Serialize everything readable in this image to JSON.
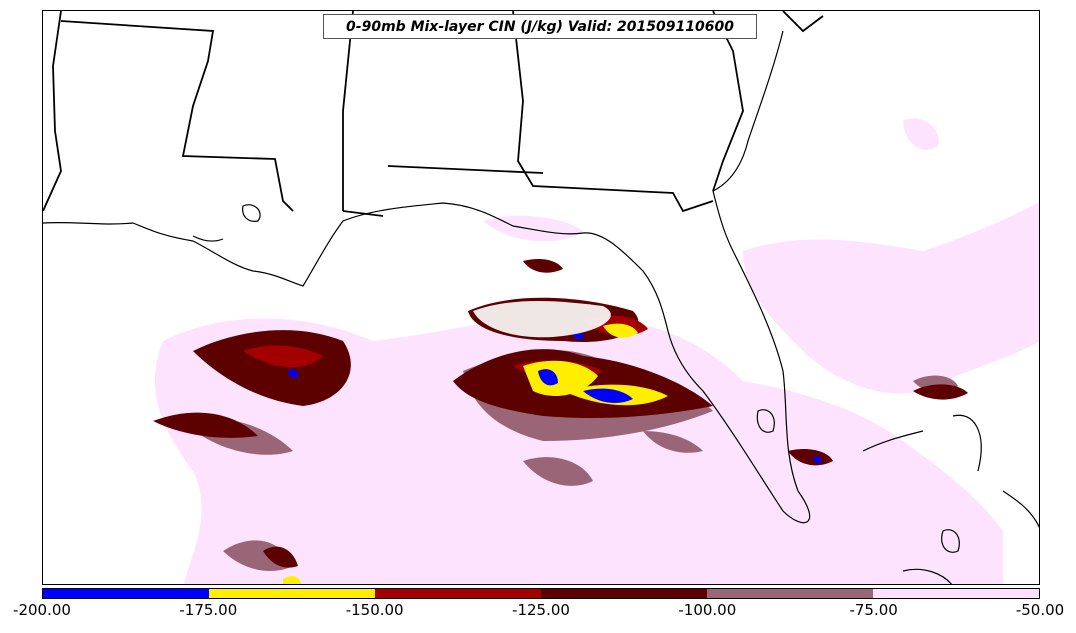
{
  "title": "0-90mb Mix-layer CIN (J/kg) Valid: 201509110600",
  "colorbar": {
    "colors": [
      "#0000ff",
      "#ffee00",
      "#a50000",
      "#5c0000",
      "#996677",
      "#ffe0ff"
    ],
    "ticks": [
      "-200.00",
      "-175.00",
      "-150.00",
      "-125.00",
      "-100.00",
      "-75.00",
      "-50.00"
    ]
  }
}
